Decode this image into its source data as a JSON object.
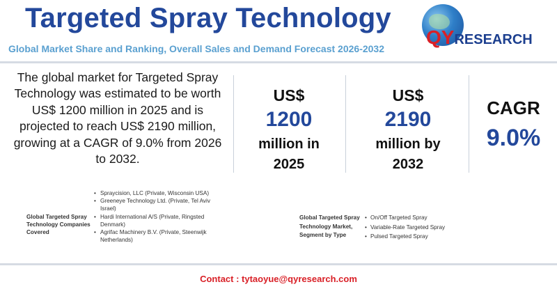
{
  "header": {
    "title": "Targeted Spray Technology",
    "subtitle": "Global Market Share and Ranking, Overall Sales and Demand Forecast 2026-2032",
    "logo_text": "QYRESEARCH"
  },
  "summary": "The global market for Targeted Spray Technology was estimated to be worth US$ 1200 million in 2025 and is projected to reach US$ 2190 million, growing at a CAGR of 9.0% from 2026 to 2032.",
  "stats": {
    "base": {
      "currency": "US$",
      "value": "1200",
      "unit_line1": "million in",
      "unit_line2": "2025"
    },
    "forecast": {
      "currency": "US$",
      "value": "2190",
      "unit_line1": "million by",
      "unit_line2": "2032"
    },
    "cagr": {
      "label": "CAGR",
      "value": "9.0%"
    }
  },
  "companies": {
    "label": "Global Targeted Spray Technology Companies Covered",
    "items": [
      "Spraycision, LLC (Private, Wisconsin USA)",
      "Greeneye Technology Ltd. (Private, Tel Aviv Israel)",
      "Hardi International A/S (Private, Ringsted Denmark)",
      "Agrifac Machinery B.V. (Private, Steenwijk Netherlands)"
    ]
  },
  "segments": {
    "label": "Global Targeted Spray Technology Market, Segment by Type",
    "items": [
      "On/Off Targeted Spray",
      "Variable-Rate Targeted Spray",
      "Pulsed Targeted Spray"
    ]
  },
  "contact": "Contact : tytaoyue@qyresearch.com",
  "colors": {
    "title_blue": "#23489b",
    "subtitle_blue": "#5aa0d0",
    "accent_red": "#d92027"
  }
}
